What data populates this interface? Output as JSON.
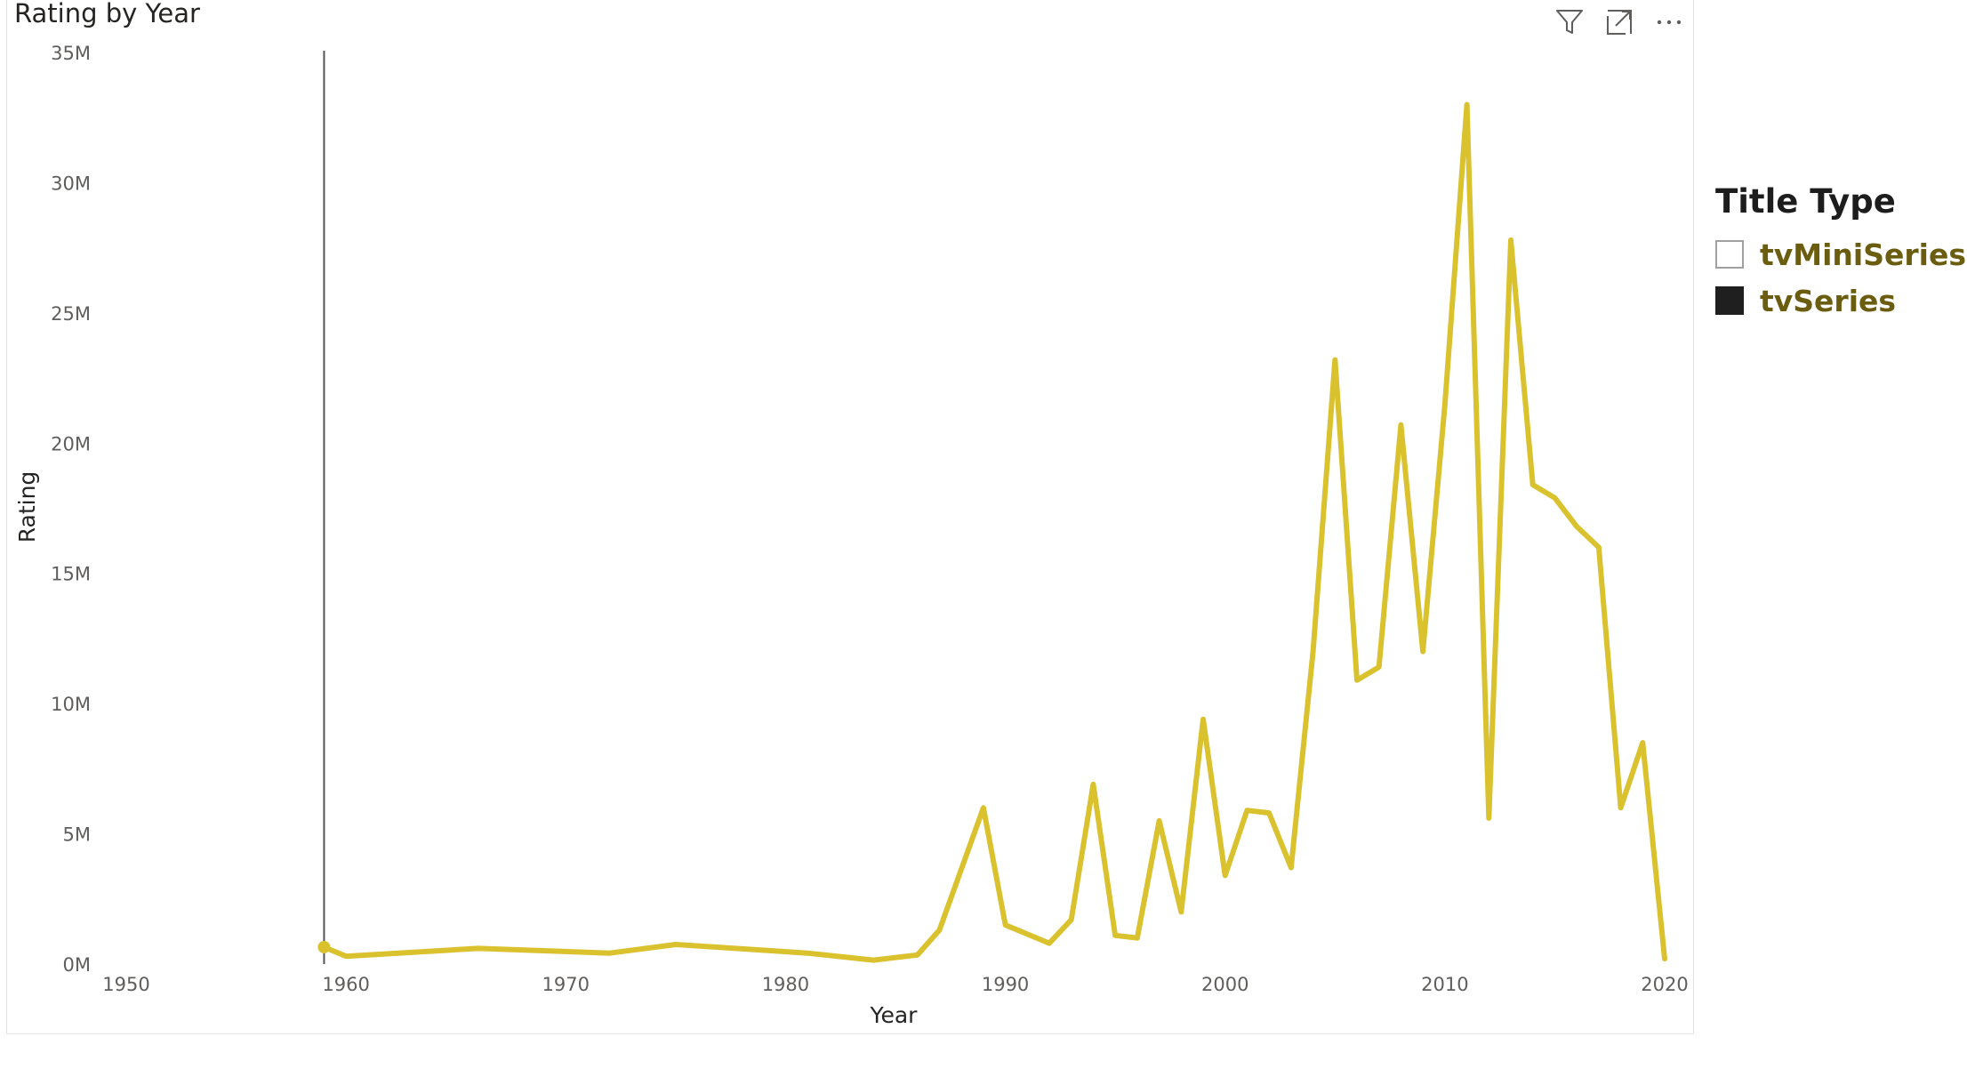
{
  "chart_data": {
    "type": "line",
    "title": "Rating by Year",
    "xlabel": "Year",
    "ylabel": "Rating",
    "xlim": [
      1950,
      2020
    ],
    "ylim": [
      0,
      35000000
    ],
    "x_ticks": [
      "1950",
      "1960",
      "1970",
      "1980",
      "1990",
      "2000",
      "2010",
      "2020"
    ],
    "y_ticks": [
      "0M",
      "5M",
      "10M",
      "15M",
      "20M",
      "25M",
      "30M",
      "35M"
    ],
    "grid": false,
    "legend_position": "right",
    "reference_line_x": 1959,
    "series": [
      {
        "name": "tvSeries",
        "color": "#d9c22e",
        "x": [
          1959,
          1960,
          1966,
          1972,
          1975,
          1981,
          1984,
          1986,
          1987,
          1989,
          1990,
          1992,
          1993,
          1994,
          1995,
          1996,
          1997,
          1998,
          1999,
          2000,
          2001,
          2002,
          2003,
          2004,
          2005,
          2006,
          2007,
          2008,
          2009,
          2010,
          2011,
          2012,
          2013,
          2014,
          2015,
          2016,
          2017,
          2018,
          2019,
          2020
        ],
        "values": [
          650000,
          300000,
          600000,
          420000,
          750000,
          420000,
          150000,
          350000,
          1300000,
          6000000,
          1500000,
          800000,
          1700000,
          6900000,
          1100000,
          1000000,
          5500000,
          2000000,
          9400000,
          3400000,
          5900000,
          5800000,
          3700000,
          12000000,
          23200000,
          10900000,
          11400000,
          20700000,
          12000000,
          21500000,
          33000000,
          5600000,
          27800000,
          18400000,
          17900000,
          16800000,
          16000000,
          6000000,
          8500000,
          200000
        ]
      }
    ]
  },
  "legend": {
    "title": "Title Type",
    "items": [
      {
        "label": "tvMiniSeries",
        "swatch_color": "#ffffff",
        "border_color": "#a0a0a0",
        "text_color": "#6b5d0f"
      },
      {
        "label": "tvSeries",
        "swatch_color": "#1f1f1f",
        "border_color": "#1f1f1f",
        "text_color": "#6b5d0f"
      }
    ]
  },
  "header_icons": [
    "filter-icon",
    "focus-mode-icon",
    "more-options-icon"
  ]
}
